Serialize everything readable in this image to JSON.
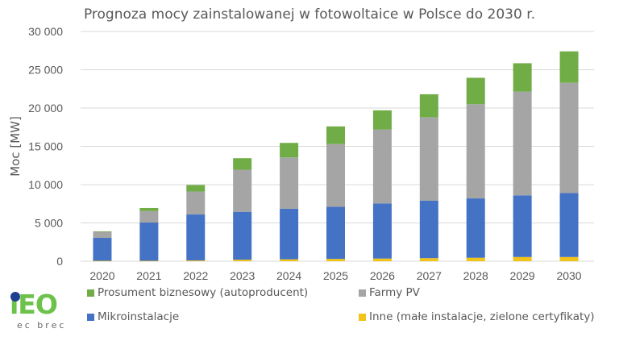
{
  "chart_data": {
    "type": "bar",
    "stacked": true,
    "title": "Prognoza mocy zainstalowanej w fotowoltaice w Polsce do 2030 r.",
    "xlabel": "",
    "ylabel": "Moc  [MW]",
    "ylim": [
      0,
      30000
    ],
    "yticks": [
      0,
      5000,
      10000,
      15000,
      20000,
      25000,
      30000
    ],
    "ytick_labels": [
      "0",
      "5 000",
      "10 000",
      "15 000",
      "20 000",
      "25 000",
      "30 000"
    ],
    "grid": true,
    "legend_position": "bottom",
    "categories": [
      "2020",
      "2021",
      "2022",
      "2023",
      "2024",
      "2025",
      "2026",
      "2027",
      "2028",
      "2029",
      "2030"
    ],
    "series": [
      {
        "name": "Inne (małe instalacje, zielone certyfikaty)",
        "color": "#f2c318",
        "values": [
          50,
          50,
          100,
          200,
          250,
          300,
          350,
          400,
          450,
          550,
          550
        ]
      },
      {
        "name": "Mikroinstalacje",
        "color": "#4472c4",
        "values": [
          3000,
          5000,
          6000,
          6250,
          6600,
          6800,
          7200,
          7500,
          7750,
          8050,
          8350
        ]
      },
      {
        "name": "Farmy PV",
        "color": "#a5a5a5",
        "values": [
          800,
          1500,
          3000,
          5500,
          6700,
          8200,
          9650,
          10900,
          12300,
          13550,
          14400
        ]
      },
      {
        "name": "Prosument biznesowy (autoproducent)",
        "color": "#70ad47",
        "values": [
          50,
          400,
          850,
          1500,
          1900,
          2300,
          2500,
          3000,
          3450,
          3700,
          4100
        ]
      }
    ],
    "legend_order": [
      3,
      2,
      1,
      0
    ]
  },
  "logo": {
    "main": "iEO",
    "sub": "ec brec"
  }
}
